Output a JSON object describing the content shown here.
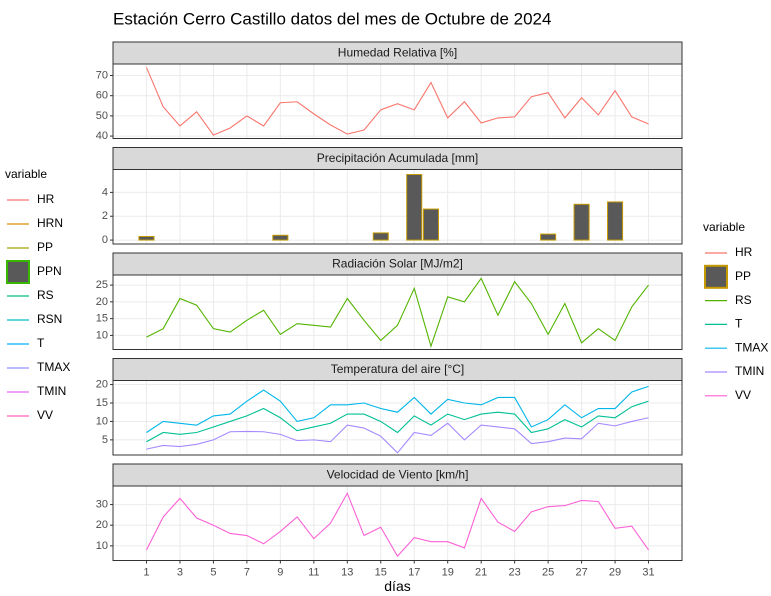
{
  "title": "Estación Cerro Castillo datos del mes de Octubre de 2024",
  "legends": [
    {
      "title": "variable",
      "items": [
        {
          "name": "HR",
          "color": "#F8766D"
        },
        {
          "name": "HRN",
          "color": "#D89000"
        },
        {
          "name": "PP",
          "color": "#A3A500"
        },
        {
          "name": "PPN",
          "color": "#39B600",
          "fill": "#595959"
        },
        {
          "name": "RS",
          "color": "#00BF7D"
        },
        {
          "name": "RSN",
          "color": "#00BFC4"
        },
        {
          "name": "T",
          "color": "#00B0F6"
        },
        {
          "name": "TMAX",
          "color": "#9590FF"
        },
        {
          "name": "TMIN",
          "color": "#E76BF3"
        },
        {
          "name": "VV",
          "color": "#FF62BC"
        }
      ]
    },
    {
      "title": "variable",
      "items": [
        {
          "name": "HR",
          "color": "#F8766D"
        },
        {
          "name": "PP",
          "color": "#C49A00",
          "fill": "#595959"
        },
        {
          "name": "RS",
          "color": "#53B400"
        },
        {
          "name": "T",
          "color": "#00C094"
        },
        {
          "name": "TMAX",
          "color": "#00B6EB"
        },
        {
          "name": "TMIN",
          "color": "#A58AFF"
        },
        {
          "name": "VV",
          "color": "#FB61D7"
        }
      ]
    }
  ],
  "chart_data": [
    {
      "type": "line",
      "title": "Humedad Relativa [%]",
      "x": [
        1,
        2,
        3,
        4,
        5,
        6,
        7,
        8,
        9,
        10,
        11,
        12,
        13,
        14,
        15,
        16,
        17,
        18,
        19,
        20,
        21,
        22,
        23,
        24,
        25,
        26,
        27,
        28,
        29,
        30,
        31
      ],
      "series": [
        {
          "name": "HR",
          "color": "#F8766D",
          "values": [
            74,
            54.5,
            45,
            52,
            40.5,
            44,
            50,
            45,
            56.5,
            57,
            51,
            45.5,
            41,
            43,
            53,
            56,
            53,
            66.5,
            49,
            57,
            46.5,
            49,
            49.5,
            59.5,
            61.5,
            49,
            59,
            50.5,
            62.5,
            49.5,
            46
          ]
        }
      ],
      "xlim": [
        -1,
        33
      ],
      "ylim": [
        38.8,
        75.7
      ],
      "yticks": [
        40,
        50,
        60,
        70
      ]
    },
    {
      "type": "bar",
      "title": "Precipitación Acumulada [mm]",
      "x": [
        1,
        2,
        3,
        4,
        5,
        6,
        7,
        8,
        9,
        10,
        11,
        12,
        13,
        14,
        15,
        16,
        17,
        18,
        19,
        20,
        21,
        22,
        23,
        24,
        25,
        26,
        27,
        28,
        29,
        30,
        31
      ],
      "series": [
        {
          "name": "PP",
          "color": "#C49A00",
          "fill": "#595959",
          "values": [
            0.3,
            0,
            0,
            0,
            0,
            0,
            0,
            0,
            0.4,
            0,
            0,
            0,
            0,
            0,
            0.6,
            0,
            5.5,
            2.6,
            0,
            0,
            0,
            0,
            0,
            0,
            0.5,
            0,
            3.0,
            0,
            3.2,
            0,
            0
          ]
        }
      ],
      "xlim": [
        -1,
        33
      ],
      "ylim": [
        -0.33,
        5.92
      ],
      "yticks": [
        0,
        2,
        4
      ]
    },
    {
      "type": "line",
      "title": "Radiación Solar [MJ/m2]",
      "x": [
        1,
        2,
        3,
        4,
        5,
        6,
        7,
        8,
        9,
        10,
        11,
        12,
        13,
        14,
        15,
        16,
        17,
        18,
        19,
        20,
        21,
        22,
        23,
        24,
        25,
        26,
        27,
        28,
        29,
        30,
        31
      ],
      "series": [
        {
          "name": "RS",
          "color": "#53B400",
          "values": [
            9.5,
            12,
            21,
            19,
            12,
            11,
            14.5,
            17.5,
            10.3,
            13.5,
            13,
            12.5,
            21,
            14.5,
            8.5,
            13,
            24,
            6.8,
            21.5,
            20,
            27,
            16,
            26,
            19.5,
            10.3,
            19.5,
            7.8,
            12,
            8.5,
            18.5,
            25
          ]
        }
      ],
      "xlim": [
        -1,
        33
      ],
      "ylim": [
        5.8,
        28
      ],
      "yticks": [
        10,
        15,
        20,
        25
      ]
    },
    {
      "type": "line",
      "title": "Temperatura del aire [°C]",
      "x": [
        1,
        2,
        3,
        4,
        5,
        6,
        7,
        8,
        9,
        10,
        11,
        12,
        13,
        14,
        15,
        16,
        17,
        18,
        19,
        20,
        21,
        22,
        23,
        24,
        25,
        26,
        27,
        28,
        29,
        30,
        31
      ],
      "series": [
        {
          "name": "T",
          "color": "#00C094",
          "values": [
            4.5,
            7,
            6.5,
            7,
            8.5,
            10,
            11.5,
            13.5,
            11,
            7.5,
            8.5,
            9.5,
            12,
            12,
            10,
            7,
            11.5,
            9,
            12,
            10.5,
            12,
            12.5,
            12,
            7,
            8,
            10.5,
            8.5,
            11.5,
            11,
            14,
            15.5
          ]
        },
        {
          "name": "TMAX",
          "color": "#00B6EB",
          "values": [
            7,
            10,
            9.5,
            9,
            11.5,
            12,
            15.5,
            18.5,
            15.5,
            10,
            11,
            14.5,
            14.5,
            15,
            13.5,
            12.5,
            16.5,
            12,
            16,
            15,
            14.5,
            16.5,
            16.5,
            8.5,
            10.5,
            14.5,
            11,
            13.5,
            13.5,
            18,
            19.5
          ]
        },
        {
          "name": "TMIN",
          "color": "#A58AFF",
          "values": [
            2.5,
            3.5,
            3.2,
            3.8,
            5,
            7.2,
            7.3,
            7.2,
            6.5,
            4.8,
            5,
            4.5,
            9,
            8.2,
            6,
            1.5,
            7,
            6.2,
            9.5,
            5,
            9,
            8.5,
            8,
            4,
            4.5,
            5.5,
            5.3,
            9.5,
            8.8,
            10,
            11
          ]
        }
      ],
      "xlim": [
        -1,
        33
      ],
      "ylim": [
        0.9,
        21.1
      ],
      "yticks": [
        5,
        10,
        15,
        20
      ]
    },
    {
      "type": "line",
      "title": "Velocidad de Viento [km/h]",
      "x": [
        1,
        2,
        3,
        4,
        5,
        6,
        7,
        8,
        9,
        10,
        11,
        12,
        13,
        14,
        15,
        16,
        17,
        18,
        19,
        20,
        21,
        22,
        23,
        24,
        25,
        26,
        27,
        28,
        29,
        30,
        31
      ],
      "series": [
        {
          "name": "VV",
          "color": "#FB61D7",
          "values": [
            8,
            24,
            33,
            23.5,
            20,
            16,
            15,
            11,
            17,
            24,
            13.5,
            21,
            35.5,
            15,
            19,
            5,
            14,
            12,
            12,
            9,
            33,
            21.5,
            17,
            26.5,
            29,
            29.5,
            32,
            31.5,
            18.5,
            19.5,
            8
          ]
        }
      ],
      "xlim": [
        -1,
        33
      ],
      "ylim": [
        2.9,
        39
      ],
      "yticks": [
        10,
        20,
        30
      ],
      "xticks": [
        1,
        3,
        5,
        7,
        9,
        11,
        13,
        15,
        17,
        19,
        21,
        23,
        25,
        27,
        29,
        31
      ],
      "xlabel": "días"
    }
  ]
}
